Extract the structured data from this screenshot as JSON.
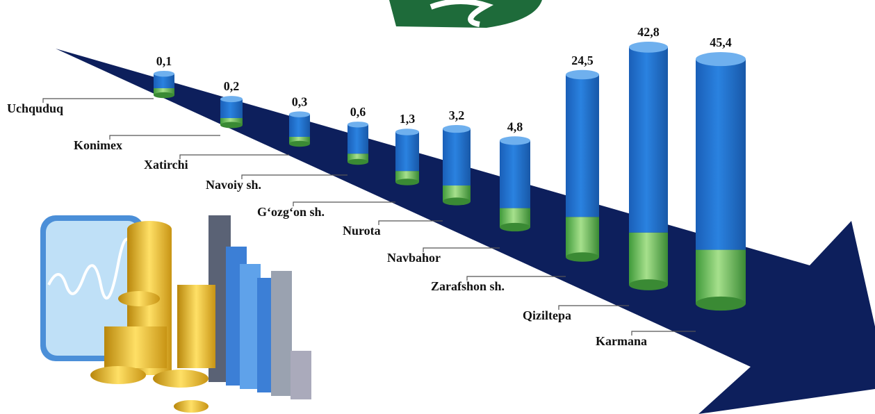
{
  "chart_data": {
    "type": "cylinder",
    "categories": [
      "Uchquduq",
      "Konimex",
      "Xatirchi",
      "Navoiy sh.",
      "G‘ozg‘on sh.",
      "Nurota",
      "Navbahor",
      "Zarafshon sh.",
      "Qiziltepa",
      "Karmana"
    ],
    "values": [
      0.1,
      0.2,
      0.3,
      0.6,
      1.3,
      3.2,
      4.8,
      24.5,
      42.8,
      45.4
    ],
    "value_labels": [
      "0,1",
      "0,2",
      "0,3",
      "0,6",
      "1,3",
      "3,2",
      "4,8",
      "24,5",
      "42,8",
      "45,4"
    ],
    "color": "#1f6fd0"
  }
}
